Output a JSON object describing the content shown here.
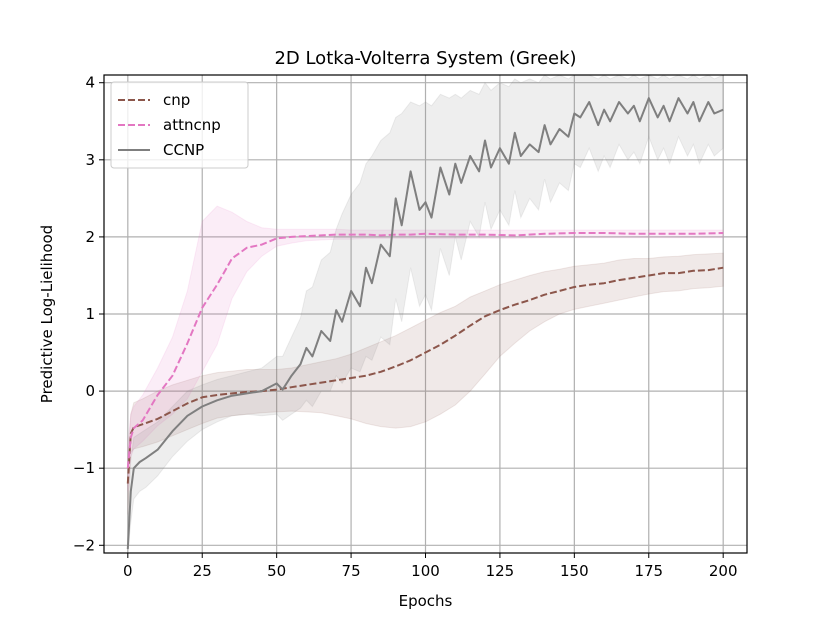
{
  "chart_data": {
    "type": "line",
    "title": "2D Lotka-Volterra System (Greek)",
    "xlabel": "Epochs",
    "ylabel": "Predictive Log-Lielihood",
    "xlim": [
      -8,
      208
    ],
    "ylim": [
      -2.1,
      4.1
    ],
    "xticks": [
      0,
      25,
      50,
      75,
      100,
      125,
      150,
      175,
      200
    ],
    "yticks": [
      -2,
      -1,
      0,
      1,
      2,
      3,
      4
    ],
    "xtick_labels": [
      "0",
      "25",
      "50",
      "75",
      "100",
      "125",
      "150",
      "175",
      "200"
    ],
    "ytick_labels": [
      "−2",
      "−1",
      "0",
      "1",
      "2",
      "3",
      "4"
    ],
    "grid": true,
    "legend_position": "top-left",
    "series": [
      {
        "name": "cnp",
        "color": "#8c564b",
        "style": "dashed",
        "x": [
          0,
          1,
          2,
          5,
          10,
          15,
          20,
          25,
          30,
          35,
          40,
          45,
          50,
          55,
          60,
          65,
          70,
          75,
          80,
          85,
          90,
          95,
          100,
          105,
          110,
          115,
          120,
          125,
          130,
          135,
          140,
          145,
          150,
          155,
          160,
          165,
          170,
          175,
          180,
          185,
          190,
          195,
          200
        ],
        "y": [
          -1.2,
          -0.55,
          -0.47,
          -0.43,
          -0.36,
          -0.26,
          -0.16,
          -0.08,
          -0.05,
          -0.03,
          -0.01,
          0.0,
          0.02,
          0.05,
          0.08,
          0.11,
          0.14,
          0.17,
          0.2,
          0.25,
          0.32,
          0.4,
          0.5,
          0.6,
          0.72,
          0.85,
          0.97,
          1.05,
          1.12,
          1.18,
          1.25,
          1.3,
          1.35,
          1.38,
          1.4,
          1.44,
          1.47,
          1.5,
          1.53,
          1.53,
          1.56,
          1.57,
          1.6
        ],
        "band_upper": [
          -0.9,
          -0.3,
          -0.15,
          -0.1,
          0.0,
          0.08,
          0.14,
          0.2,
          0.24,
          0.26,
          0.28,
          0.28,
          0.28,
          0.3,
          0.34,
          0.38,
          0.42,
          0.48,
          0.56,
          0.64,
          0.72,
          0.82,
          0.92,
          1.02,
          1.1,
          1.22,
          1.3,
          1.38,
          1.44,
          1.5,
          1.55,
          1.58,
          1.62,
          1.64,
          1.66,
          1.7,
          1.72,
          1.72,
          1.74,
          1.75,
          1.77,
          1.78,
          1.79
        ],
        "band_lower": [
          -1.6,
          -0.8,
          -0.75,
          -0.72,
          -0.66,
          -0.58,
          -0.5,
          -0.42,
          -0.35,
          -0.32,
          -0.3,
          -0.28,
          -0.27,
          -0.26,
          -0.27,
          -0.28,
          -0.32,
          -0.36,
          -0.42,
          -0.46,
          -0.48,
          -0.46,
          -0.4,
          -0.3,
          -0.18,
          0.0,
          0.22,
          0.45,
          0.62,
          0.78,
          0.9,
          1.0,
          1.06,
          1.1,
          1.14,
          1.18,
          1.22,
          1.26,
          1.29,
          1.3,
          1.33,
          1.34,
          1.36
        ]
      },
      {
        "name": "attncnp",
        "color": "#e377c2",
        "style": "dashed",
        "x": [
          0,
          1,
          2,
          5,
          10,
          15,
          20,
          25,
          30,
          35,
          40,
          45,
          50,
          55,
          60,
          65,
          70,
          75,
          80,
          85,
          90,
          95,
          100,
          110,
          120,
          130,
          140,
          150,
          160,
          170,
          180,
          190,
          200
        ],
        "y": [
          -1.0,
          -0.6,
          -0.48,
          -0.38,
          -0.05,
          0.2,
          0.62,
          1.08,
          1.38,
          1.72,
          1.86,
          1.9,
          1.98,
          2.0,
          2.01,
          2.02,
          2.03,
          2.03,
          2.03,
          2.02,
          2.03,
          2.03,
          2.04,
          2.03,
          2.03,
          2.02,
          2.04,
          2.05,
          2.05,
          2.04,
          2.04,
          2.04,
          2.05
        ],
        "band_upper": [
          -0.7,
          -0.3,
          -0.2,
          -0.05,
          0.3,
          0.7,
          1.3,
          2.2,
          2.4,
          2.32,
          2.2,
          2.12,
          2.1,
          2.1,
          2.1,
          2.1,
          2.1,
          2.09,
          2.09,
          2.09,
          2.09,
          2.09,
          2.09,
          2.09,
          2.09,
          2.09,
          2.09,
          2.09,
          2.09,
          2.09,
          2.09,
          2.09,
          2.09
        ],
        "band_lower": [
          -1.3,
          -0.85,
          -0.75,
          -0.65,
          -0.45,
          -0.3,
          -0.1,
          0.25,
          0.6,
          1.2,
          1.55,
          1.75,
          1.88,
          1.92,
          1.95,
          1.96,
          1.97,
          1.97,
          1.98,
          1.98,
          1.98,
          1.98,
          1.98,
          1.98,
          1.98,
          1.98,
          1.99,
          1.99,
          1.99,
          1.99,
          1.99,
          1.99,
          1.99
        ]
      },
      {
        "name": "CCNP",
        "color": "#7f7f7f",
        "style": "solid",
        "x": [
          0,
          1,
          2,
          4,
          6,
          10,
          15,
          20,
          25,
          30,
          35,
          40,
          45,
          50,
          52,
          55,
          58,
          60,
          62,
          65,
          68,
          70,
          72,
          75,
          78,
          80,
          82,
          85,
          88,
          90,
          92,
          95,
          98,
          100,
          102,
          105,
          108,
          110,
          112,
          115,
          118,
          120,
          122,
          125,
          128,
          130,
          132,
          135,
          138,
          140,
          142,
          145,
          148,
          150,
          152,
          155,
          158,
          160,
          162,
          165,
          168,
          170,
          172,
          175,
          178,
          180,
          182,
          185,
          188,
          190,
          192,
          195,
          197,
          200
        ],
        "y": [
          -2.05,
          -1.3,
          -1.0,
          -0.92,
          -0.87,
          -0.76,
          -0.52,
          -0.32,
          -0.2,
          -0.12,
          -0.06,
          -0.03,
          0.0,
          0.1,
          0.02,
          0.2,
          0.35,
          0.56,
          0.45,
          0.78,
          0.65,
          1.05,
          0.9,
          1.3,
          1.1,
          1.6,
          1.4,
          1.9,
          1.75,
          2.5,
          2.15,
          2.85,
          2.35,
          2.45,
          2.25,
          2.9,
          2.55,
          2.95,
          2.7,
          3.05,
          2.85,
          3.25,
          2.9,
          3.15,
          2.95,
          3.35,
          3.05,
          3.2,
          3.1,
          3.45,
          3.2,
          3.4,
          3.3,
          3.6,
          3.55,
          3.75,
          3.45,
          3.65,
          3.5,
          3.75,
          3.6,
          3.7,
          3.5,
          3.8,
          3.55,
          3.7,
          3.5,
          3.8,
          3.6,
          3.75,
          3.5,
          3.75,
          3.6,
          3.65
        ],
        "band_upper": [
          -1.6,
          -0.9,
          -0.6,
          -0.55,
          -0.5,
          -0.4,
          -0.2,
          0.0,
          0.08,
          0.15,
          0.2,
          0.25,
          0.3,
          0.45,
          0.45,
          0.7,
          0.95,
          1.3,
          1.35,
          1.7,
          1.8,
          2.1,
          2.3,
          2.55,
          2.7,
          2.95,
          3.05,
          3.25,
          3.35,
          3.55,
          3.6,
          3.75,
          3.7,
          3.75,
          3.7,
          3.85,
          3.8,
          3.85,
          3.8,
          3.9,
          3.85,
          4.0,
          3.9,
          4.0,
          3.95,
          4.05,
          4.0,
          4.05,
          4.0,
          4.1,
          4.05,
          4.1,
          4.05,
          4.1,
          4.1,
          4.1,
          4.05,
          4.1,
          4.05,
          4.1,
          4.05,
          4.1,
          4.05,
          4.1,
          4.05,
          4.1,
          4.05,
          4.1,
          4.05,
          4.1,
          4.05,
          4.1,
          4.05,
          4.1
        ],
        "band_lower": [
          -2.1,
          -1.7,
          -1.4,
          -1.3,
          -1.25,
          -1.1,
          -0.85,
          -0.65,
          -0.5,
          -0.4,
          -0.32,
          -0.3,
          -0.32,
          -0.3,
          -0.38,
          -0.3,
          -0.22,
          -0.12,
          -0.2,
          0.0,
          0.0,
          0.2,
          0.1,
          0.3,
          0.25,
          0.45,
          0.4,
          0.7,
          0.6,
          1.2,
          0.9,
          1.6,
          1.1,
          1.25,
          1.05,
          1.85,
          1.5,
          2.0,
          1.7,
          2.2,
          2.0,
          2.45,
          2.1,
          2.35,
          2.15,
          2.6,
          2.25,
          2.5,
          2.35,
          2.75,
          2.45,
          2.7,
          2.6,
          2.95,
          2.9,
          3.15,
          2.85,
          3.05,
          2.9,
          3.2,
          3.0,
          3.1,
          2.95,
          3.3,
          3.0,
          3.15,
          2.95,
          3.3,
          3.05,
          3.2,
          2.95,
          3.2,
          3.05,
          3.15
        ]
      }
    ]
  }
}
